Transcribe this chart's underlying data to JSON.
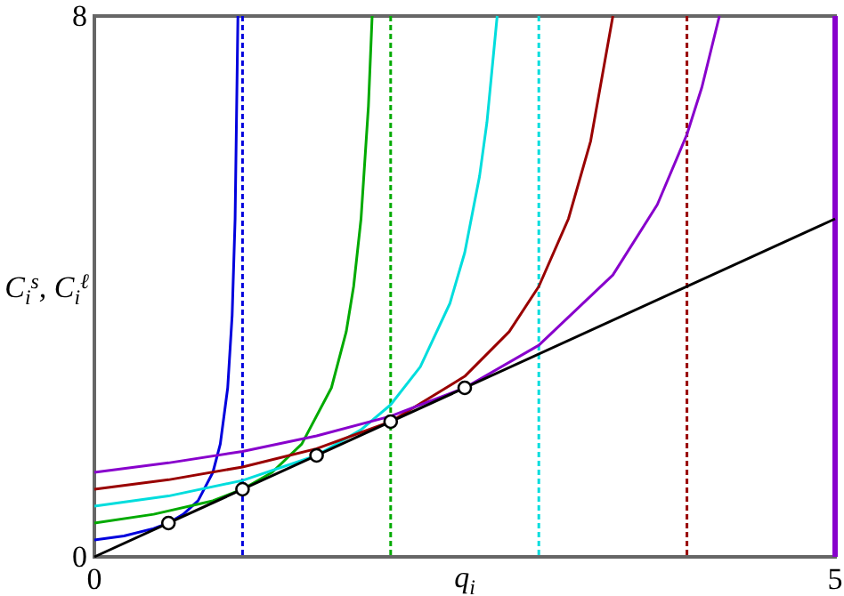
{
  "chart_data": {
    "type": "line",
    "xlabel": "q$_{i}$",
    "ylabel": "C$_{i}$$^{s}$, C$_{i}$$^{ℓ}$",
    "xlim": [
      0,
      5
    ],
    "ylim": [
      0,
      8
    ],
    "xticks": [
      0,
      5
    ],
    "yticks": [
      0,
      8
    ],
    "series": [
      {
        "color": "#0000dd",
        "x": [
          0,
          0.2,
          0.4,
          0.5,
          0.6,
          0.7,
          0.8,
          0.85,
          0.9,
          0.93,
          0.95,
          0.969
        ],
        "values": [
          0.25,
          0.31,
          0.42,
          0.5,
          0.63,
          0.83,
          1.25,
          1.67,
          2.5,
          3.57,
          5,
          8
        ]
      },
      {
        "color": "#00aa00",
        "x": [
          0,
          0.4,
          0.8,
          1,
          1.2,
          1.4,
          1.6,
          1.7,
          1.75,
          1.8,
          1.85,
          1.875
        ],
        "values": [
          0.5,
          0.63,
          0.83,
          1,
          1.25,
          1.67,
          2.5,
          3.33,
          4,
          5,
          6.67,
          8
        ]
      },
      {
        "color": "#00dddd",
        "x": [
          0,
          0.5,
          1,
          1.5,
          1.8,
          2,
          2.2,
          2.4,
          2.5,
          2.6,
          2.65,
          2.719
        ],
        "values": [
          0.75,
          0.9,
          1.13,
          1.5,
          1.88,
          2.25,
          2.81,
          3.75,
          4.5,
          5.63,
          6.43,
          8
        ]
      },
      {
        "color": "#990000",
        "x": [
          0,
          0.5,
          1,
          1.5,
          2,
          2.5,
          2.8,
          3,
          3.2,
          3.35,
          3.5
        ],
        "values": [
          1,
          1.14,
          1.33,
          1.6,
          2,
          2.67,
          3.33,
          4,
          5,
          6.15,
          8
        ]
      },
      {
        "color": "#8800cc",
        "x": [
          0,
          0.5,
          1,
          1.5,
          2,
          2.5,
          3,
          3.5,
          3.8,
          4,
          4.1,
          4.219
        ],
        "values": [
          1.25,
          1.39,
          1.56,
          1.79,
          2.08,
          2.5,
          3.13,
          4.17,
          5.21,
          6.25,
          6.94,
          8
        ]
      },
      {
        "color": "#000000",
        "x": [
          0,
          5
        ],
        "values": [
          0,
          5
        ]
      },
      {
        "type": "scatter",
        "marker": "circle",
        "color": "#000000",
        "x": [
          0.5,
          1,
          1.5,
          2,
          2.5
        ],
        "values": [
          0.5,
          1,
          1.5,
          2,
          2.5
        ]
      }
    ],
    "ref_lines": [
      {
        "axis": "x",
        "value": 1,
        "color": "#0000dd",
        "line_style": "dashed"
      },
      {
        "axis": "x",
        "value": 2,
        "color": "#00aa00",
        "line_style": "dashed"
      },
      {
        "axis": "x",
        "value": 3,
        "color": "#00dddd",
        "line_style": "dashed"
      },
      {
        "axis": "x",
        "value": 4,
        "color": "#990000",
        "line_style": "dashed"
      },
      {
        "axis": "x",
        "value": 5,
        "color": "#8800cc",
        "line_style": "solid"
      }
    ]
  }
}
